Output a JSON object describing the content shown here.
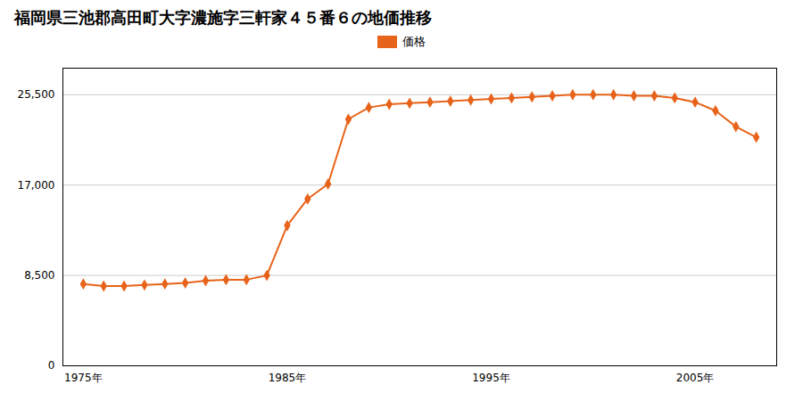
{
  "chart_data": {
    "type": "line",
    "title": "福岡県三池郡高田町大字濃施字三軒家４５番６の地価推移",
    "x": [
      1975,
      1976,
      1977,
      1978,
      1979,
      1980,
      1981,
      1982,
      1983,
      1984,
      1985,
      1986,
      1987,
      1988,
      1989,
      1990,
      1991,
      1992,
      1993,
      1994,
      1995,
      1996,
      1997,
      1998,
      1999,
      2000,
      2001,
      2002,
      2003,
      2004,
      2005,
      2006,
      2007,
      2008
    ],
    "series": [
      {
        "name": "価格",
        "color": "#E8631A",
        "marker": "diamond",
        "values": [
          7700,
          7500,
          7500,
          7600,
          7700,
          7800,
          8000,
          8100,
          8100,
          8500,
          13200,
          15700,
          17100,
          23200,
          24300,
          24600,
          24700,
          24800,
          24900,
          25000,
          25100,
          25200,
          25300,
          25400,
          25500,
          25500,
          25500,
          25400,
          25400,
          25200,
          24800,
          24000,
          22500,
          21500
        ]
      }
    ],
    "xlim": [
      1974,
      2009
    ],
    "xticks": [
      {
        "value": 1975,
        "label": "1975年"
      },
      {
        "value": 1985,
        "label": "1985年"
      },
      {
        "value": 1995,
        "label": "1995年"
      },
      {
        "value": 2005,
        "label": "2005年"
      }
    ],
    "ylim": [
      0,
      28000
    ],
    "yticks": [
      0,
      {
        "value": 8500,
        "label": "8,500"
      },
      {
        "value": 17000,
        "label": "17,000"
      },
      {
        "value": 25500,
        "label": "25,500"
      }
    ],
    "grid": "y",
    "legend": "top"
  }
}
